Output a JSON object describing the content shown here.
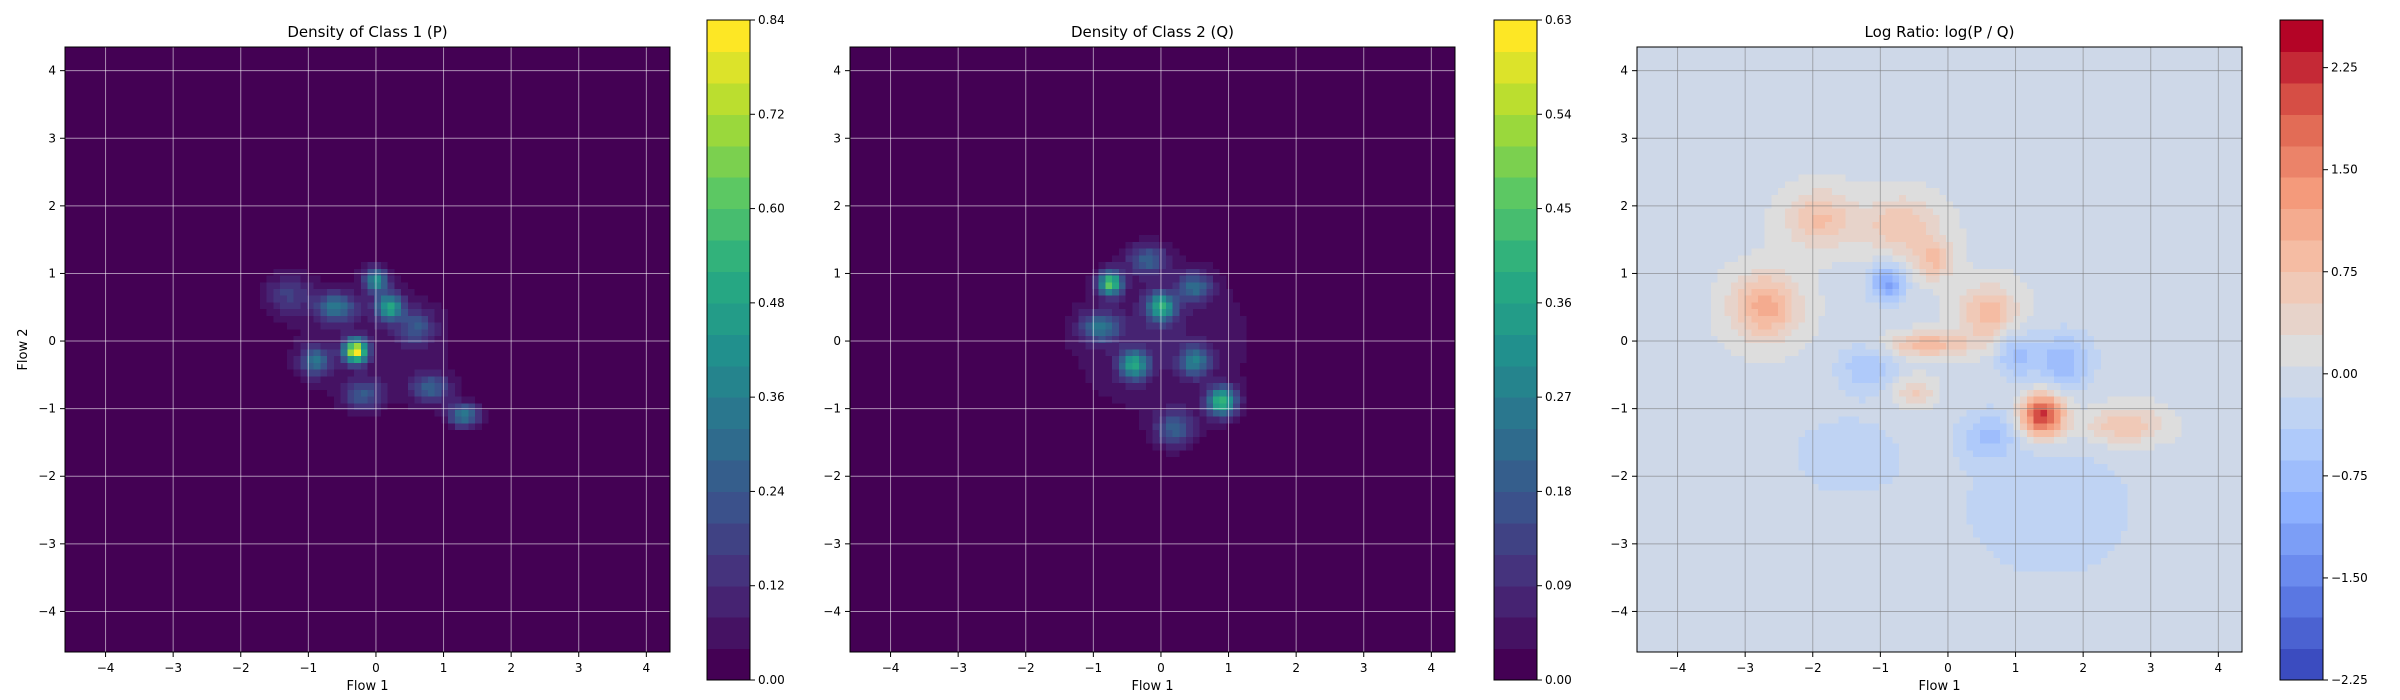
{
  "chart_data": [
    {
      "type": "heatmap",
      "title": "Density of Class 1 (P)",
      "xlabel": "Flow 1",
      "ylabel": "Flow 2",
      "xlim": [
        -4.6,
        4.35
      ],
      "ylim": [
        -4.6,
        4.35
      ],
      "xticks": [
        -4,
        -3,
        -2,
        -1,
        0,
        1,
        2,
        3,
        4
      ],
      "yticks": [
        -4,
        -3,
        -2,
        -1,
        0,
        1,
        2,
        3,
        4
      ],
      "grid": true,
      "colormap": "viridis",
      "colorbar": {
        "min": 0.0,
        "max": 0.84,
        "ticks": [
          0.0,
          0.12,
          0.24,
          0.36,
          0.48,
          0.6,
          0.72,
          0.84
        ],
        "tick_labels": [
          "0.00",
          "0.12",
          "0.24",
          "0.36",
          "0.48",
          "0.60",
          "0.72",
          "0.84"
        ]
      },
      "blobs": [
        {
          "x": 0.0,
          "y": 0.0,
          "sx": 1.15,
          "sy": 0.75,
          "amp": 0.06
        },
        {
          "x": -0.3,
          "y": -0.15,
          "sx": 0.12,
          "sy": 0.12,
          "amp": 0.78
        },
        {
          "x": 0.2,
          "y": 0.5,
          "sx": 0.14,
          "sy": 0.14,
          "amp": 0.45
        },
        {
          "x": 0.0,
          "y": 0.9,
          "sx": 0.12,
          "sy": 0.12,
          "amp": 0.4
        },
        {
          "x": -0.6,
          "y": 0.5,
          "sx": 0.2,
          "sy": 0.15,
          "amp": 0.3
        },
        {
          "x": 1.3,
          "y": -1.1,
          "sx": 0.16,
          "sy": 0.12,
          "amp": 0.35
        },
        {
          "x": 0.8,
          "y": -0.7,
          "sx": 0.2,
          "sy": 0.15,
          "amp": 0.25
        },
        {
          "x": -0.9,
          "y": -0.3,
          "sx": 0.15,
          "sy": 0.15,
          "amp": 0.3
        },
        {
          "x": 0.6,
          "y": 0.2,
          "sx": 0.18,
          "sy": 0.18,
          "amp": 0.2
        },
        {
          "x": -0.2,
          "y": -0.8,
          "sx": 0.2,
          "sy": 0.15,
          "amp": 0.22
        },
        {
          "x": -1.3,
          "y": 0.7,
          "sx": 0.25,
          "sy": 0.2,
          "amp": 0.15
        }
      ]
    },
    {
      "type": "heatmap",
      "title": "Density of Class 2 (Q)",
      "xlabel": "Flow 1",
      "ylabel": "",
      "xlim": [
        -4.6,
        4.35
      ],
      "ylim": [
        -4.6,
        4.35
      ],
      "xticks": [
        -4,
        -3,
        -2,
        -1,
        0,
        1,
        2,
        3,
        4
      ],
      "yticks": [
        -4,
        -3,
        -2,
        -1,
        0,
        1,
        2,
        3,
        4
      ],
      "grid": true,
      "colormap": "viridis",
      "colorbar": {
        "min": 0.0,
        "max": 0.63,
        "ticks": [
          0.0,
          0.09,
          0.18,
          0.27,
          0.36,
          0.45,
          0.54,
          0.63
        ],
        "tick_labels": [
          "0.00",
          "0.09",
          "0.18",
          "0.27",
          "0.36",
          "0.45",
          "0.54",
          "0.63"
        ]
      },
      "blobs": [
        {
          "x": 0.0,
          "y": 0.0,
          "sx": 1.1,
          "sy": 0.9,
          "amp": 0.06
        },
        {
          "x": -0.75,
          "y": 0.85,
          "sx": 0.12,
          "sy": 0.12,
          "amp": 0.45
        },
        {
          "x": 0.0,
          "y": 0.5,
          "sx": 0.15,
          "sy": 0.15,
          "amp": 0.35
        },
        {
          "x": -0.4,
          "y": -0.35,
          "sx": 0.15,
          "sy": 0.15,
          "amp": 0.33
        },
        {
          "x": 0.9,
          "y": -0.9,
          "sx": 0.15,
          "sy": 0.15,
          "amp": 0.4
        },
        {
          "x": 0.5,
          "y": -0.3,
          "sx": 0.15,
          "sy": 0.15,
          "amp": 0.25
        },
        {
          "x": -0.9,
          "y": 0.2,
          "sx": 0.2,
          "sy": 0.15,
          "amp": 0.22
        },
        {
          "x": 0.5,
          "y": 0.8,
          "sx": 0.18,
          "sy": 0.15,
          "amp": 0.2
        },
        {
          "x": 0.2,
          "y": -1.3,
          "sx": 0.2,
          "sy": 0.18,
          "amp": 0.18
        },
        {
          "x": -0.2,
          "y": 1.2,
          "sx": 0.2,
          "sy": 0.15,
          "amp": 0.18
        }
      ]
    },
    {
      "type": "heatmap",
      "title": "Log Ratio: log(P / Q)",
      "xlabel": "Flow 1",
      "ylabel": "",
      "xlim": [
        -4.6,
        4.35
      ],
      "ylim": [
        -4.6,
        4.35
      ],
      "xticks": [
        -4,
        -3,
        -2,
        -1,
        0,
        1,
        2,
        3,
        4
      ],
      "yticks": [
        -4,
        -3,
        -2,
        -1,
        0,
        1,
        2,
        3,
        4
      ],
      "grid": true,
      "colormap": "coolwarm",
      "colorbar": {
        "min": -2.25,
        "max": 2.6,
        "ticks": [
          -2.25,
          -1.5,
          -0.75,
          0.0,
          0.75,
          1.5,
          2.25
        ],
        "tick_labels": [
          "−2.25",
          "−1.50",
          "−0.75",
          "0.00",
          "0.75",
          "1.50",
          "2.25"
        ]
      },
      "blobs": [
        {
          "x": 1.4,
          "y": -1.1,
          "sx": 0.22,
          "sy": 0.22,
          "amp": 2.3
        },
        {
          "x": -2.7,
          "y": 0.5,
          "sx": 0.35,
          "sy": 0.35,
          "amp": 1.1
        },
        {
          "x": -1.9,
          "y": 1.8,
          "sx": 0.35,
          "sy": 0.3,
          "amp": 0.8
        },
        {
          "x": -0.7,
          "y": 1.7,
          "sx": 0.4,
          "sy": 0.3,
          "amp": 0.75
        },
        {
          "x": 0.6,
          "y": 0.4,
          "sx": 0.3,
          "sy": 0.3,
          "amp": 0.9
        },
        {
          "x": -0.2,
          "y": 1.2,
          "sx": 0.2,
          "sy": 0.2,
          "amp": 0.8
        },
        {
          "x": -0.3,
          "y": -0.05,
          "sx": 0.4,
          "sy": 0.12,
          "amp": 1.0
        },
        {
          "x": 2.6,
          "y": -1.25,
          "sx": 0.4,
          "sy": 0.2,
          "amp": 0.8
        },
        {
          "x": -0.5,
          "y": -0.75,
          "sx": 0.2,
          "sy": 0.15,
          "amp": 0.6
        },
        {
          "x": -0.9,
          "y": 0.85,
          "sx": 0.18,
          "sy": 0.18,
          "amp": -1.2
        },
        {
          "x": 1.7,
          "y": -0.3,
          "sx": 0.3,
          "sy": 0.3,
          "amp": -0.8
        },
        {
          "x": 1.0,
          "y": -0.2,
          "sx": 0.2,
          "sy": 0.25,
          "amp": -0.7
        },
        {
          "x": -1.2,
          "y": -0.4,
          "sx": 0.3,
          "sy": 0.25,
          "amp": -0.6
        },
        {
          "x": 0.6,
          "y": -1.4,
          "sx": 0.3,
          "sy": 0.25,
          "amp": -0.6
        },
        {
          "x": 1.5,
          "y": -2.5,
          "sx": 1.0,
          "sy": 0.8,
          "amp": -0.35
        },
        {
          "x": -1.5,
          "y": -1.7,
          "sx": 0.7,
          "sy": 0.5,
          "amp": -0.3
        }
      ]
    }
  ]
}
